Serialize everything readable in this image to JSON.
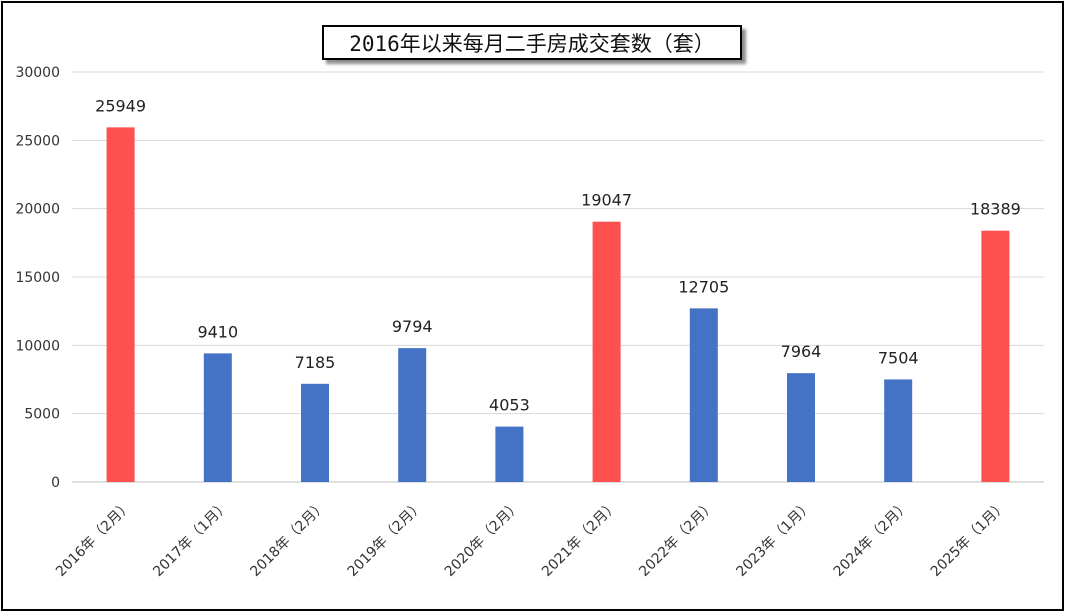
{
  "chart_data": {
    "type": "bar",
    "title": "2016年以来每月二手房成交套数（套）",
    "xlabel": "",
    "ylabel": "",
    "ylim": [
      0,
      30000
    ],
    "yticks": [
      "0",
      "5000",
      "10000",
      "15000",
      "20000",
      "25000",
      "30000"
    ],
    "grid": true,
    "legend": "none",
    "categories": [
      "2016年（2月）",
      "2017年（1月）",
      "2018年（2月）",
      "2019年（2月）",
      "2020年（2月）",
      "2021年（2月）",
      "2022年（2月）",
      "2023年（1月）",
      "2024年（2月）",
      "2025年（1月）"
    ],
    "values": [
      25949,
      9410,
      7185,
      9794,
      4053,
      19047,
      12705,
      7964,
      7504,
      18389
    ],
    "data_labels": [
      "25949",
      "9410",
      "7185",
      "9794",
      "4053",
      "19047",
      "12705",
      "7964",
      "7504",
      "18389"
    ],
    "bar_colors": [
      "#ff5050",
      "#4472c4",
      "#4472c4",
      "#4472c4",
      "#4472c4",
      "#ff5050",
      "#4472c4",
      "#4472c4",
      "#4472c4",
      "#ff5050"
    ]
  }
}
